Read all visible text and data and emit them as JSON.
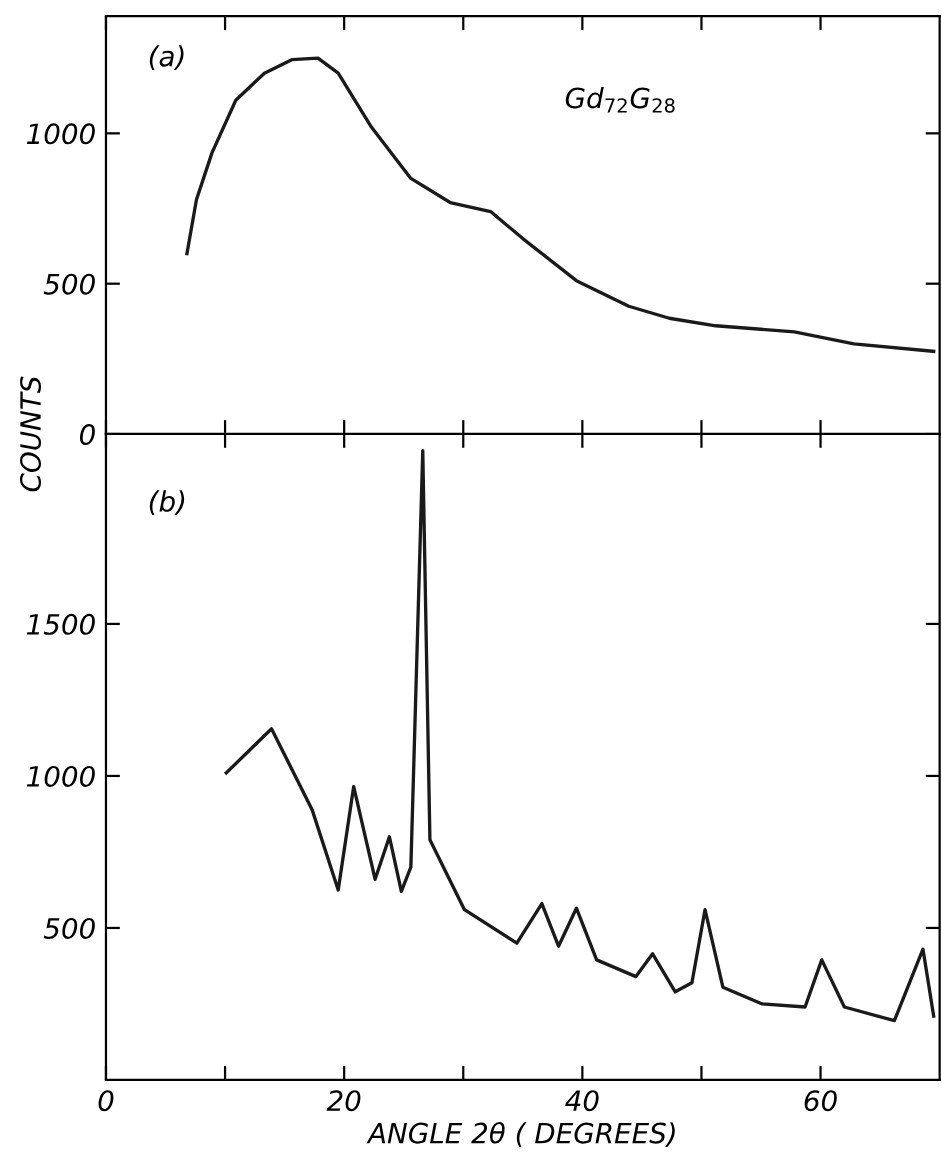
{
  "chart_data": [
    {
      "type": "line",
      "ylabel": "COUNTS",
      "annotations": [
        "(a)",
        "Gd$_{72}$G$_{28}$"
      ],
      "series": [
        {
          "color": "#1a1a1a",
          "x": [
            6.8,
            7.6,
            8.9,
            10.9,
            13.3,
            15.6,
            17.8,
            19.5,
            22.3,
            25.6,
            28.9,
            32.3,
            35.0,
            39.5,
            43.9,
            47.3,
            51.2,
            57.8,
            62.8,
            69.5
          ],
          "values": [
            600,
            780,
            935,
            1110,
            1200,
            1245,
            1250,
            1200,
            1020,
            850,
            770,
            740,
            650,
            510,
            425,
            385,
            360,
            340,
            300,
            275
          ]
        }
      ],
      "xlim": [
        0,
        70
      ],
      "xticks": [
        {
          "value": 0,
          "label": null
        },
        {
          "value": 10,
          "label": null
        },
        {
          "value": 20,
          "label": null
        },
        {
          "value": 30,
          "label": null
        },
        {
          "value": 40,
          "label": null
        },
        {
          "value": 50,
          "label": null
        },
        {
          "value": 60,
          "label": null
        }
      ],
      "ylim": [
        0,
        1390
      ],
      "yticks": [
        0,
        500,
        1000
      ],
      "tick_labels": "y",
      "grid": false,
      "legend": false,
      "marker": "none",
      "line_style": "solid"
    },
    {
      "type": "line",
      "xlabel": "ANGLE 2θ ( DEGREES)",
      "annotations": [
        "(b)"
      ],
      "series": [
        {
          "color": "#1a1a1a",
          "x": [
            10.1,
            13.9,
            17.3,
            19.5,
            20.8,
            22.6,
            23.8,
            24.8,
            25.6,
            26.6,
            27.2,
            30.1,
            34.5,
            36.6,
            38.0,
            39.5,
            41.2,
            44.5,
            45.9,
            47.8,
            49.2,
            50.3,
            51.8,
            55.1,
            58.7,
            60.1,
            62.0,
            66.2,
            68.6,
            69.5
          ],
          "values": [
            1010,
            1155,
            890,
            625,
            965,
            660,
            800,
            620,
            700,
            2070,
            790,
            560,
            450,
            580,
            440,
            565,
            395,
            340,
            415,
            290,
            320,
            560,
            305,
            250,
            240,
            395,
            240,
            195,
            430,
            210
          ]
        }
      ],
      "xlim": [
        0,
        70
      ],
      "xticks": [
        0,
        {
          "value": 10,
          "label": null
        },
        20,
        {
          "value": 30,
          "label": null
        },
        40,
        {
          "value": 50,
          "label": null
        },
        60
      ],
      "ylim": [
        0,
        2125
      ],
      "yticks": [
        500,
        1000,
        1500
      ],
      "grid": false,
      "legend": false,
      "marker": "none",
      "line_style": "solid"
    }
  ]
}
